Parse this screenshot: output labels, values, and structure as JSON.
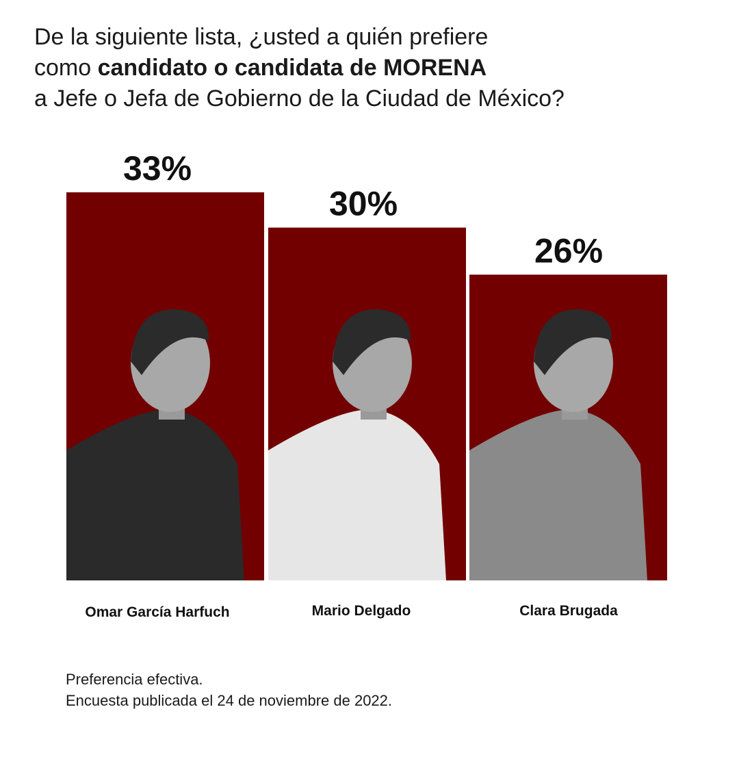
{
  "title": {
    "line1": "De la siguiente lista, ¿usted a quién prefiere",
    "line2_pre": "como ",
    "line2_bold": "candidato o candidata de MORENA",
    "line3": "a Jefe o Jefa de Gobierno de la Ciudad de México?"
  },
  "chart_data": {
    "type": "bar",
    "categories": [
      "Omar García Harfuch",
      "Mario Delgado",
      "Clara Brugada"
    ],
    "values": [
      33,
      30,
      26
    ],
    "value_labels": [
      "33%",
      "30%",
      "26%"
    ],
    "unit": "%",
    "ylim": [
      0,
      35
    ],
    "grid": false,
    "bar_color": "#720000",
    "xlabel": "",
    "ylabel": ""
  },
  "footer": {
    "line1": "Preferencia efectiva.",
    "line2": "Encuesta publicada el 24 de noviembre de 2022."
  }
}
